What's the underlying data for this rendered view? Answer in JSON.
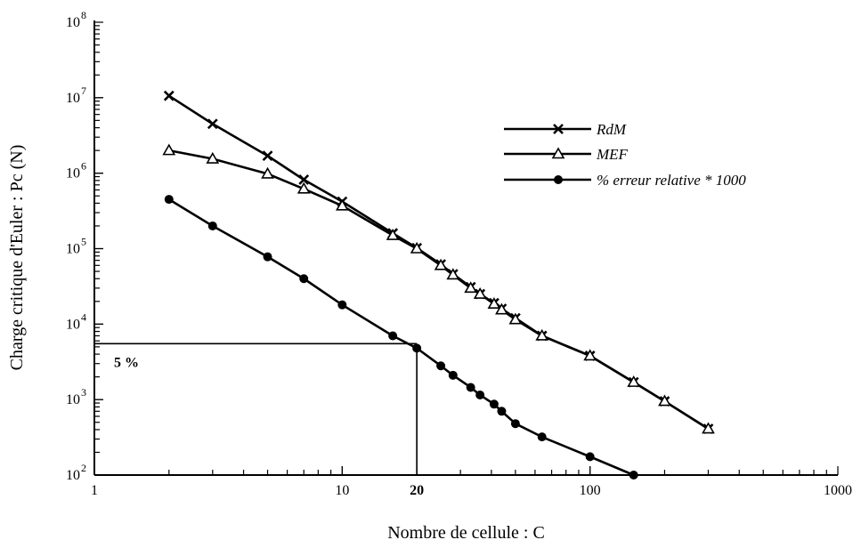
{
  "chart_data": {
    "type": "line",
    "xscale": "log",
    "yscale": "log",
    "xlim": [
      1,
      1000
    ],
    "ylim": [
      100,
      100000000
    ],
    "xlabel": "Nombre de cellule : C",
    "ylabel": "Charge critique d'Euler : Pc (N)",
    "x_ticks": [
      {
        "value": 1,
        "label": "1"
      },
      {
        "value": 10,
        "label": "10"
      },
      {
        "value": 20,
        "label": "20"
      },
      {
        "value": 100,
        "label": "100"
      },
      {
        "value": 1000,
        "label": "1000"
      }
    ],
    "y_ticks": [
      {
        "value": 100,
        "base": "10",
        "exp": "2"
      },
      {
        "value": 1000,
        "base": "10",
        "exp": "3"
      },
      {
        "value": 10000,
        "base": "10",
        "exp": "4"
      },
      {
        "value": 100000,
        "base": "10",
        "exp": "5"
      },
      {
        "value": 1000000,
        "base": "10",
        "exp": "6"
      },
      {
        "value": 10000000,
        "base": "10",
        "exp": "7"
      },
      {
        "value": 100000000,
        "base": "10",
        "exp": "8"
      }
    ],
    "grid": false,
    "legend_position": "top-right",
    "series": [
      {
        "name": "RdM",
        "marker": "x",
        "x": [
          2,
          3,
          5,
          7,
          10,
          16,
          20,
          25,
          28,
          33,
          36,
          41,
          44,
          50,
          64,
          100,
          150,
          200,
          300
        ],
        "y": [
          10600000,
          4500000,
          1700000,
          820000,
          420000,
          160000,
          102000,
          62000,
          46000,
          31000,
          25000,
          19000,
          16000,
          12000,
          7000,
          3800,
          1700,
          950,
          410
        ]
      },
      {
        "name": "MEF",
        "marker": "triangle",
        "x": [
          2,
          3,
          5,
          7,
          10,
          16,
          20,
          25,
          28,
          33,
          36,
          41,
          44,
          50,
          64,
          100,
          150,
          200,
          300
        ],
        "y": [
          2000000,
          1550000,
          980000,
          620000,
          370000,
          150000,
          100000,
          60000,
          45000,
          30000,
          25000,
          18500,
          15500,
          11500,
          7000,
          3800,
          1700,
          950,
          410
        ]
      },
      {
        "name": "% erreur relative * 1000",
        "marker": "circle",
        "x": [
          2,
          3,
          5,
          7,
          10,
          16,
          20,
          25,
          28,
          33,
          36,
          41,
          44,
          50,
          64,
          100,
          150
        ],
        "y": [
          450000,
          200000,
          78000,
          40000,
          18000,
          7000,
          4800,
          2800,
          2100,
          1450,
          1150,
          870,
          700,
          480,
          320,
          175,
          100
        ]
      }
    ],
    "annotations": [
      {
        "text": "5 %",
        "x": 20,
        "y": 5500
      }
    ]
  }
}
